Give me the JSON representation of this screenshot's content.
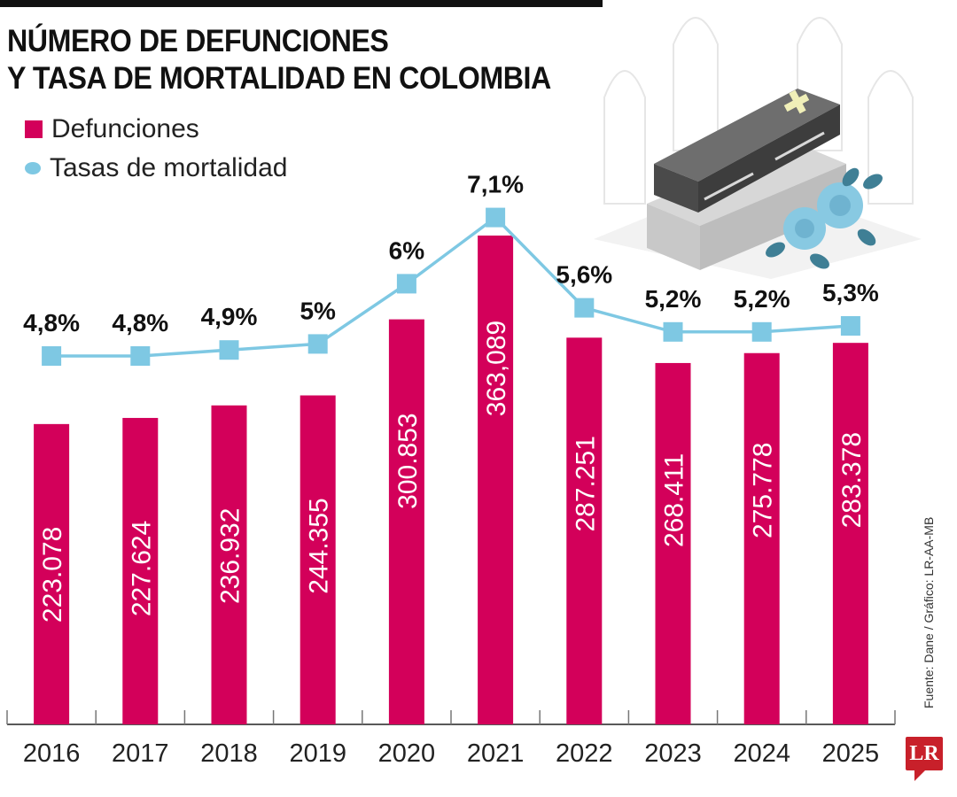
{
  "header": {
    "title_line1": "NÚMERO DE DEFUNCIONES",
    "title_line2": "Y TASA DE MORTALIDAD EN COLOMBIA"
  },
  "legend": [
    {
      "label": "Defunciones",
      "color": "#d3005a",
      "shape": "square"
    },
    {
      "label": "Tasas de mortalidad",
      "color": "#7ec8e3",
      "shape": "dot"
    }
  ],
  "source": "Fuente: Dane / Gráfico: LR-AA-MB",
  "logo": "LR",
  "illustration": "coffin-with-roses-icon",
  "chart_data": {
    "type": "bar",
    "title": "NÚMERO DE DEFUNCIONES Y TASA DE MORTALIDAD EN COLOMBIA",
    "xlabel": "",
    "ylabel": "",
    "categories": [
      "2016",
      "2017",
      "2018",
      "2019",
      "2020",
      "2021",
      "2022",
      "2023",
      "2024",
      "2025"
    ],
    "series": [
      {
        "name": "Defunciones",
        "type": "bar",
        "color": "#d3005a",
        "values": [
          223078,
          227624,
          236932,
          244355,
          300853,
          363089,
          287251,
          268411,
          275778,
          283378
        ],
        "labels": [
          "223.078",
          "227.624",
          "236.932",
          "244.355",
          "300.853",
          "363,089",
          "287.251",
          "268.411",
          "275.778",
          "283.378"
        ],
        "ylim": [
          0,
          363089
        ]
      },
      {
        "name": "Tasas de mortalidad",
        "type": "line",
        "color": "#7ec8e3",
        "values": [
          4.8,
          4.8,
          4.9,
          5.0,
          6.0,
          7.1,
          5.6,
          5.2,
          5.2,
          5.3
        ],
        "labels": [
          "4,8%",
          "4,8%",
          "4,9%",
          "5%",
          "6%",
          "7,1%",
          "5,6%",
          "5,2%",
          "5,2%",
          "5,3%"
        ],
        "unit": "%"
      }
    ],
    "grid": false,
    "legend_position": "top-left"
  }
}
